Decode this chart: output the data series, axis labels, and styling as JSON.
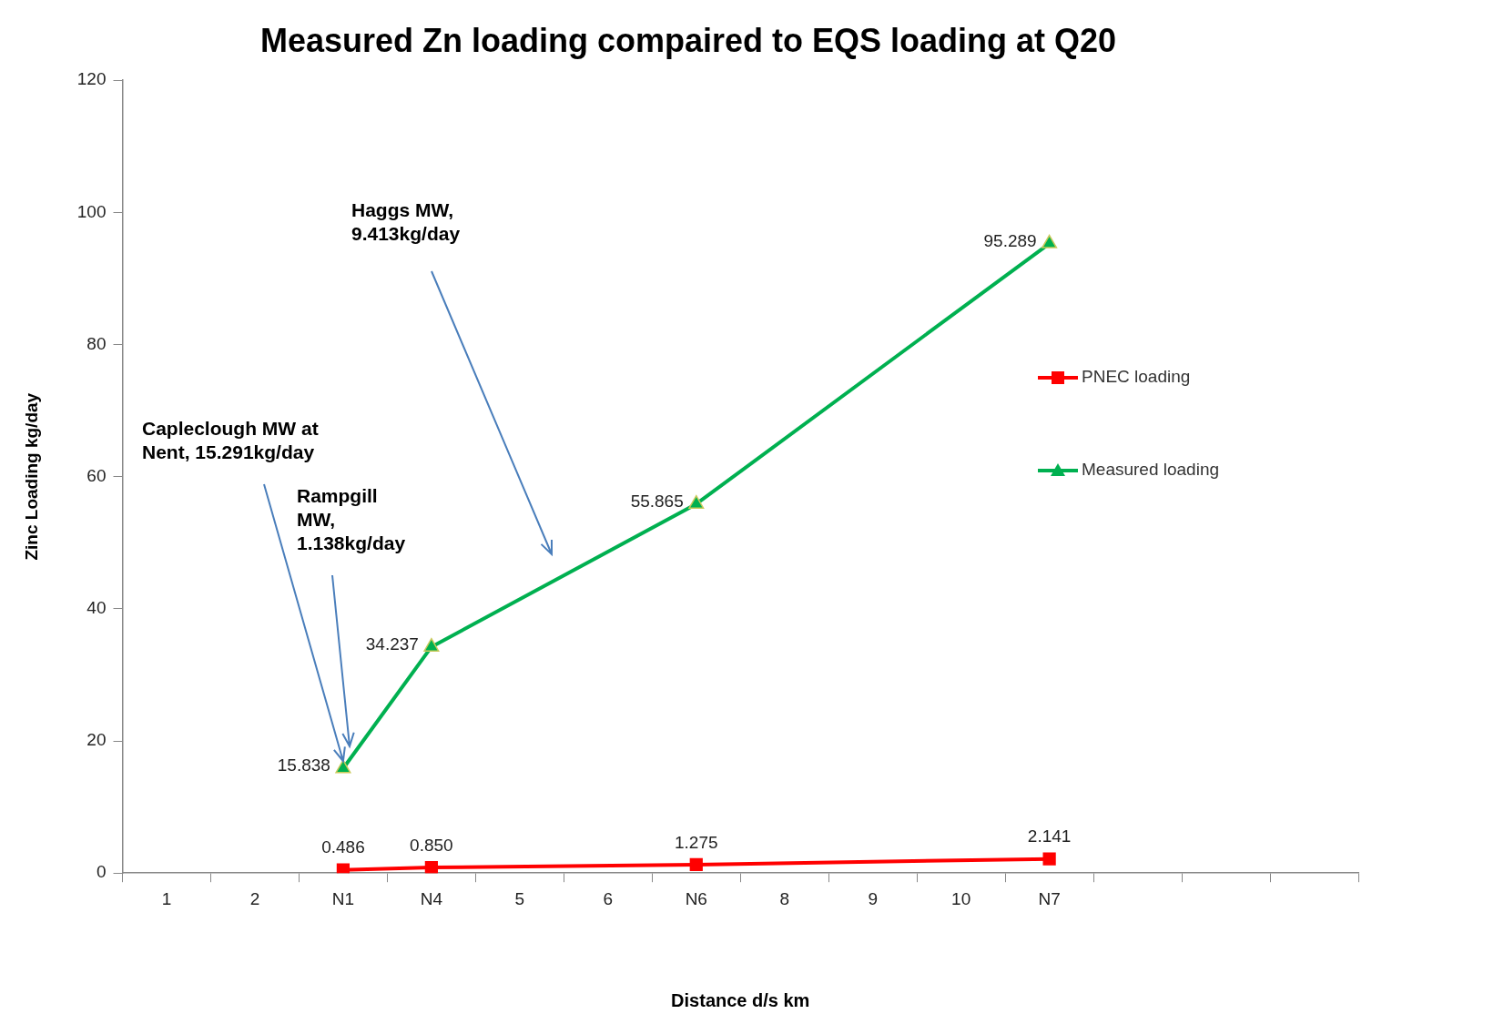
{
  "chart_data": {
    "type": "line",
    "title": "Measured Zn loading compaired to EQS loading at Q20",
    "xlabel": "Distance d/s km",
    "ylabel": "Zinc Loading kg/day",
    "categories": [
      "1",
      "2",
      "N1",
      "N4",
      "5",
      "6",
      "N6",
      "8",
      "9",
      "10",
      "N7",
      null,
      null,
      null
    ],
    "series": [
      {
        "name": "PNEC loading",
        "color": "#ff0000",
        "marker": "square",
        "values": [
          null,
          null,
          0.486,
          0.85,
          null,
          null,
          1.275,
          null,
          null,
          null,
          2.141,
          null,
          null,
          null
        ],
        "value_labels": [
          null,
          null,
          "0.486",
          "0.850",
          null,
          null,
          "1.275",
          null,
          null,
          null,
          "2.141",
          null,
          null,
          null
        ]
      },
      {
        "name": "Measured loading",
        "color": "#00b050",
        "marker": "triangle",
        "values": [
          null,
          null,
          15.838,
          34.237,
          null,
          null,
          55.865,
          null,
          null,
          null,
          95.289,
          null,
          null,
          null
        ],
        "value_labels": [
          null,
          null,
          "15.838",
          "34.237",
          null,
          null,
          "55.865",
          null,
          null,
          null,
          "95.289",
          null,
          null,
          null
        ]
      }
    ],
    "ylim": [
      0,
      120
    ],
    "yticks": [
      0,
      20,
      40,
      60,
      80,
      100,
      120
    ],
    "grid": false,
    "legend": "right",
    "line_style": "solid",
    "annotations": [
      {
        "text": "Capleclough MW at Nent, 15.291kg/day",
        "x": "N1",
        "y": 15.838
      },
      "Rampgill MW, 1.138kg/day",
      "Haggs MW, 9.413kg/day"
    ]
  }
}
